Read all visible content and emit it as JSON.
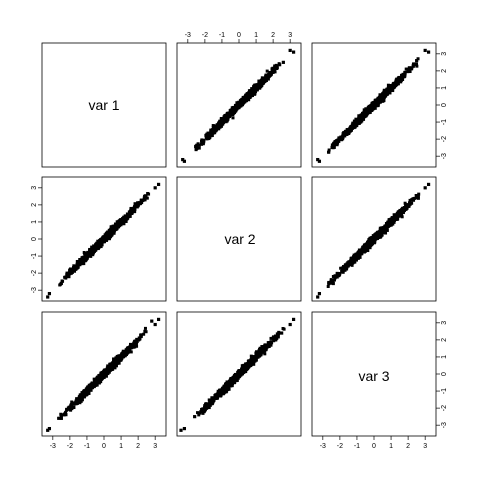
{
  "chart_data": {
    "type": "scatter",
    "layout": "scatterplot-matrix",
    "variables": [
      "var 1",
      "var 2",
      "var 3"
    ],
    "axis_range": [
      -3.4,
      3.4
    ],
    "tick_values": [
      -3,
      -2,
      -1,
      0,
      1,
      2,
      3
    ],
    "tick_labels": [
      "-3",
      "-2",
      "-1",
      "0",
      "1",
      "2",
      "3"
    ],
    "grid": false,
    "point_color": "#000000",
    "panels": [
      {
        "row": 0,
        "col": 1,
        "x_var": "var 2",
        "y_var": "var 1",
        "points": [
          [
            -3.3,
            -3.2
          ],
          [
            -3.2,
            -3.3
          ],
          [
            3.0,
            3.2
          ],
          [
            3.2,
            3.1
          ],
          [
            -2.5,
            -2.4
          ],
          [
            -2.2,
            -2.3
          ],
          [
            -1.5,
            -1.6
          ],
          [
            -0.8,
            -0.7
          ],
          [
            0.0,
            0.1
          ],
          [
            0.7,
            0.6
          ],
          [
            1.4,
            1.5
          ],
          [
            2.1,
            2.2
          ],
          [
            2.6,
            2.5
          ]
        ]
      },
      {
        "row": 0,
        "col": 2,
        "x_var": "var 3",
        "y_var": "var 1",
        "points": [
          [
            -3.3,
            -3.2
          ],
          [
            -3.2,
            -3.3
          ],
          [
            3.0,
            3.2
          ],
          [
            3.2,
            3.1
          ],
          [
            -2.4,
            -2.5
          ],
          [
            -1.8,
            -1.7
          ],
          [
            -1.0,
            -1.1
          ],
          [
            -0.2,
            -0.1
          ],
          [
            0.6,
            0.5
          ],
          [
            1.3,
            1.4
          ],
          [
            2.0,
            2.1
          ],
          [
            2.5,
            2.6
          ]
        ]
      },
      {
        "row": 1,
        "col": 0,
        "x_var": "var 1",
        "y_var": "var 2",
        "points": [
          [
            -3.3,
            -3.4
          ],
          [
            -3.2,
            -3.2
          ],
          [
            3.0,
            3.0
          ],
          [
            3.2,
            3.2
          ],
          [
            -2.5,
            -2.6
          ],
          [
            -2.0,
            -1.9
          ],
          [
            -1.2,
            -1.3
          ],
          [
            -0.4,
            -0.3
          ],
          [
            0.4,
            0.5
          ],
          [
            1.1,
            1.0
          ],
          [
            1.8,
            1.9
          ],
          [
            2.4,
            2.3
          ]
        ]
      },
      {
        "row": 1,
        "col": 2,
        "x_var": "var 3",
        "y_var": "var 2",
        "points": [
          [
            -3.3,
            -3.4
          ],
          [
            -3.2,
            -3.2
          ],
          [
            3.0,
            3.0
          ],
          [
            3.2,
            3.2
          ],
          [
            -2.4,
            -2.5
          ],
          [
            -1.7,
            -1.6
          ],
          [
            -0.9,
            -1.0
          ],
          [
            -0.1,
            0.0
          ],
          [
            0.7,
            0.6
          ],
          [
            1.5,
            1.6
          ],
          [
            2.2,
            2.1
          ]
        ]
      },
      {
        "row": 2,
        "col": 0,
        "x_var": "var 1",
        "y_var": "var 3",
        "points": [
          [
            -3.3,
            -3.3
          ],
          [
            -3.2,
            -3.2
          ],
          [
            3.0,
            2.9
          ],
          [
            3.2,
            3.2
          ],
          [
            2.8,
            3.1
          ],
          [
            -2.5,
            -2.6
          ],
          [
            -1.9,
            -1.8
          ],
          [
            -1.1,
            -1.2
          ],
          [
            -0.3,
            -0.2
          ],
          [
            0.5,
            0.4
          ],
          [
            1.2,
            1.3
          ],
          [
            1.9,
            1.8
          ],
          [
            2.4,
            2.5
          ]
        ]
      },
      {
        "row": 2,
        "col": 1,
        "x_var": "var 2",
        "y_var": "var 3",
        "points": [
          [
            -3.4,
            -3.3
          ],
          [
            -3.2,
            -3.2
          ],
          [
            3.0,
            2.9
          ],
          [
            3.2,
            3.2
          ],
          [
            -2.6,
            -2.5
          ],
          [
            -1.9,
            -2.0
          ],
          [
            -1.1,
            -1.0
          ],
          [
            -0.3,
            -0.4
          ],
          [
            0.5,
            0.6
          ],
          [
            1.3,
            1.2
          ],
          [
            2.0,
            2.1
          ],
          [
            2.5,
            2.4
          ]
        ]
      }
    ]
  }
}
